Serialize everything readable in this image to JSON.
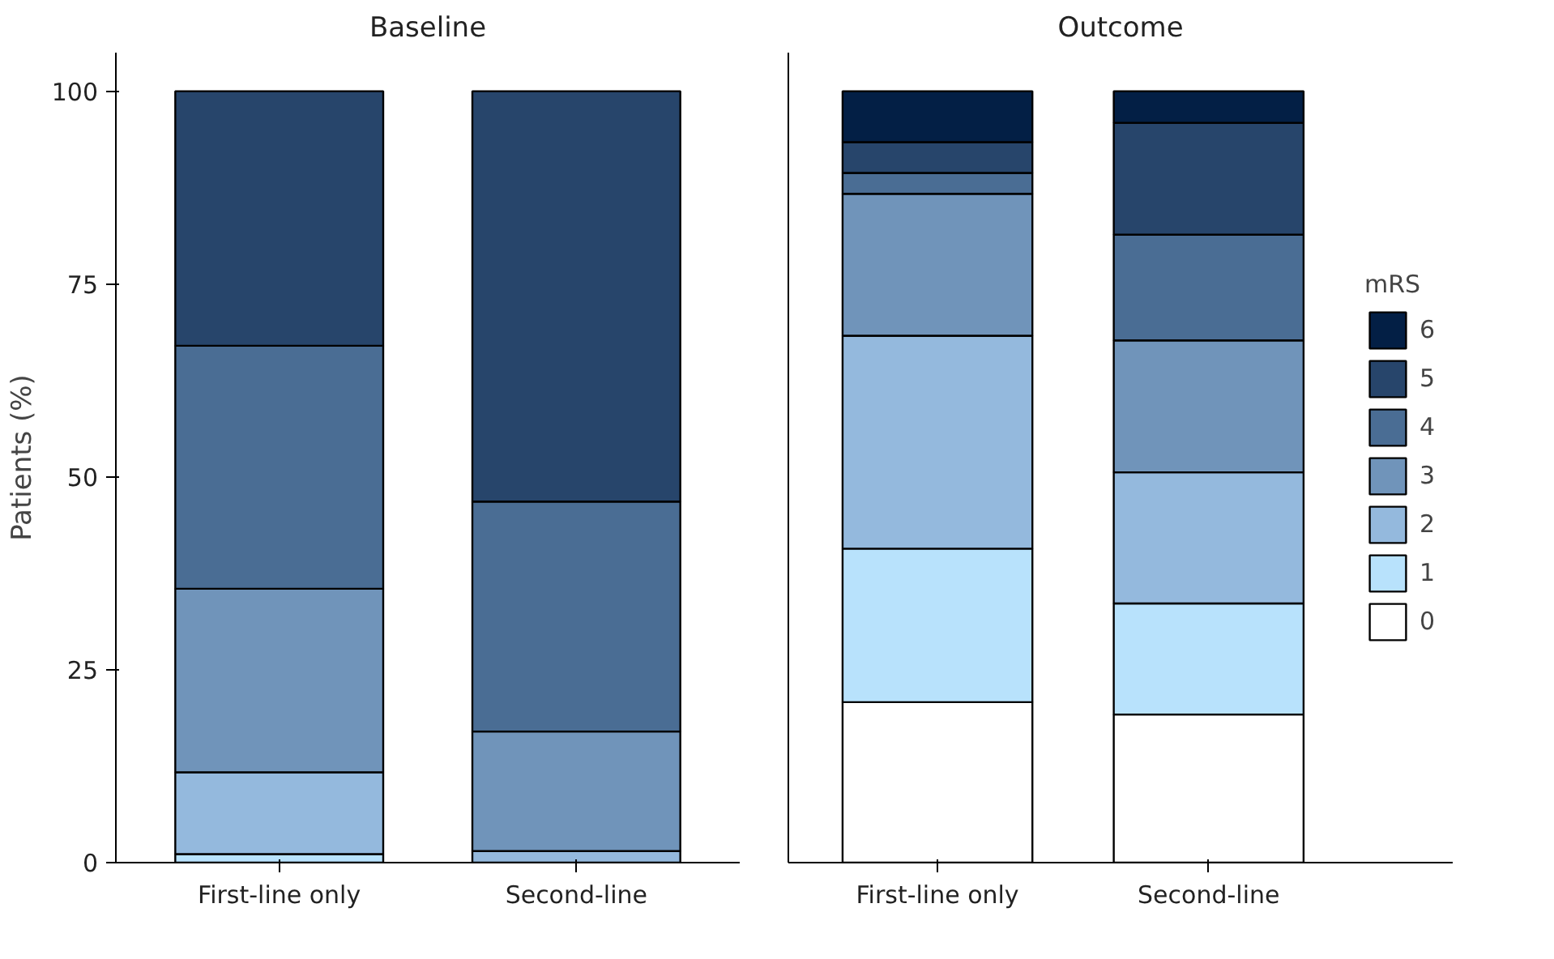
{
  "chart_data": [
    {
      "type": "bar",
      "title": "Baseline",
      "ylabel": "Patients (%)",
      "stacked": true,
      "categories": [
        "First-line only",
        "Second-line"
      ],
      "ylim": [
        0,
        105
      ],
      "yticks": [
        0,
        25,
        50,
        75,
        100
      ],
      "series": [
        {
          "color": "#b8e2fc",
          "values": [
            1.1,
            0
          ]
        },
        {
          "color": "#94b9dd",
          "values": [
            10.6,
            1.5
          ]
        },
        {
          "color": "#7094ba",
          "values": [
            23.8,
            15.5
          ]
        },
        {
          "color": "#4a6d94",
          "values": [
            31.5,
            29.8
          ]
        },
        {
          "color": "#27456b",
          "values": [
            33.0,
            53.2
          ]
        }
      ]
    },
    {
      "type": "bar",
      "title": "Outcome",
      "stacked": true,
      "categories": [
        "First-line only",
        "Second-line"
      ],
      "ylim": [
        0,
        105
      ],
      "yticks": [
        0,
        25,
        50,
        75,
        100
      ],
      "tick_labels": "x",
      "legend": "right",
      "legend_title": "mRS",
      "series": [
        {
          "name": "0",
          "color": "#ffffff",
          "values": [
            20.8,
            19.2
          ]
        },
        {
          "name": "1",
          "color": "#b8e2fc",
          "values": [
            19.9,
            14.4
          ]
        },
        {
          "name": "2",
          "color": "#94b9dd",
          "values": [
            27.6,
            17.0
          ]
        },
        {
          "name": "3",
          "color": "#7094ba",
          "values": [
            18.4,
            17.1
          ]
        },
        {
          "name": "4",
          "color": "#4a6d94",
          "values": [
            2.7,
            13.7
          ]
        },
        {
          "name": "5",
          "color": "#27456b",
          "values": [
            4.0,
            14.5
          ]
        },
        {
          "name": "6",
          "color": "#031f45",
          "values": [
            6.6,
            4.1
          ]
        }
      ]
    }
  ]
}
